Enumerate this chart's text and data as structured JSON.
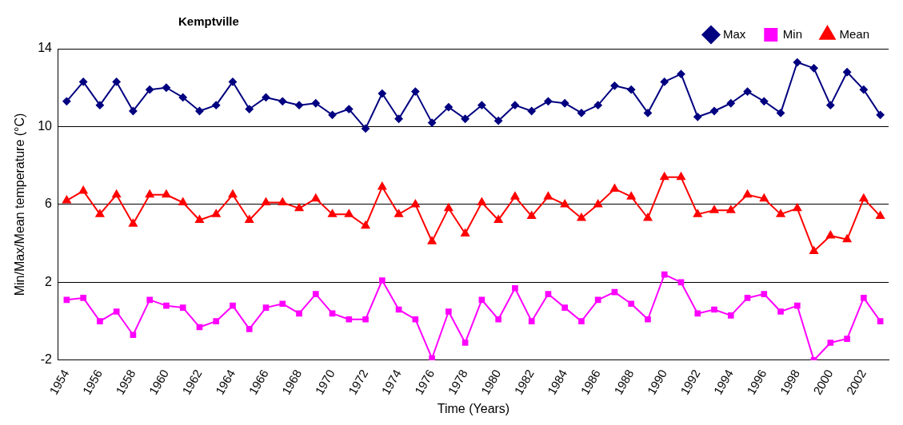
{
  "chart_data": {
    "type": "line",
    "title": "Kemptville",
    "xlabel": "Time (Years)",
    "ylabel": "Min/Max/Mean temperature (°C)",
    "categories": [
      "1954",
      null,
      "1956",
      null,
      "1958",
      null,
      "1960",
      null,
      "1962",
      null,
      "1964",
      null,
      "1966",
      null,
      "1968",
      null,
      "1970",
      null,
      "1972",
      null,
      "1974",
      null,
      "1976",
      null,
      "1978",
      null,
      "1980",
      null,
      "1982",
      null,
      "1984",
      null,
      "1986",
      null,
      "1988",
      null,
      "1990",
      null,
      "1992",
      null,
      "1994",
      null,
      "1996",
      null,
      "1998",
      null,
      "2000",
      null,
      "2002",
      null
    ],
    "series": [
      {
        "name": "Max",
        "color": "#000080",
        "marker": "diamond",
        "values": [
          11.3,
          12.3,
          11.1,
          12.3,
          10.8,
          11.9,
          12.0,
          11.5,
          10.8,
          11.1,
          12.3,
          10.9,
          11.5,
          11.3,
          11.1,
          11.2,
          10.6,
          10.9,
          9.9,
          11.7,
          10.4,
          11.8,
          10.2,
          11.0,
          10.4,
          11.1,
          10.3,
          11.1,
          10.8,
          11.3,
          11.2,
          10.7,
          11.1,
          12.1,
          11.9,
          10.7,
          12.3,
          12.7,
          10.5,
          10.8,
          11.2,
          11.8,
          11.3,
          10.7,
          13.3,
          13.0,
          11.1,
          12.8,
          11.9,
          10.6
        ]
      },
      {
        "name": "Min",
        "color": "#ff00ff",
        "marker": "square",
        "values": [
          1.1,
          1.2,
          0.0,
          0.5,
          -0.7,
          1.1,
          0.8,
          0.7,
          -0.3,
          0.0,
          0.8,
          -0.4,
          0.7,
          0.9,
          0.4,
          1.4,
          0.4,
          0.1,
          0.1,
          2.1,
          0.6,
          0.1,
          -1.9,
          0.5,
          -1.1,
          1.1,
          0.1,
          1.7,
          0.0,
          1.4,
          0.7,
          0.0,
          1.1,
          1.5,
          0.9,
          0.1,
          2.4,
          2.0,
          0.4,
          0.6,
          0.3,
          1.2,
          1.4,
          0.5,
          0.8,
          -2.0,
          -1.1,
          -0.9,
          1.2,
          0.0
        ]
      },
      {
        "name": "Mean",
        "color": "#ff0000",
        "marker": "triangle",
        "values": [
          6.2,
          6.7,
          5.5,
          6.5,
          5.0,
          6.5,
          6.5,
          6.1,
          5.2,
          5.5,
          6.5,
          5.2,
          6.1,
          6.1,
          5.8,
          6.3,
          5.5,
          5.5,
          4.9,
          6.9,
          5.5,
          6.0,
          4.1,
          5.8,
          4.5,
          6.1,
          5.2,
          6.4,
          5.4,
          6.4,
          6.0,
          5.3,
          6.0,
          6.8,
          6.4,
          5.3,
          7.4,
          7.4,
          5.5,
          5.7,
          5.7,
          6.5,
          6.3,
          5.5,
          5.8,
          3.6,
          4.4,
          4.2,
          6.3,
          5.4
        ]
      }
    ],
    "ylim": [
      -2,
      14
    ],
    "yticks": [
      -2,
      2,
      6,
      10,
      14
    ],
    "grid": "y",
    "legend": "top right",
    "line_style": "solid"
  }
}
